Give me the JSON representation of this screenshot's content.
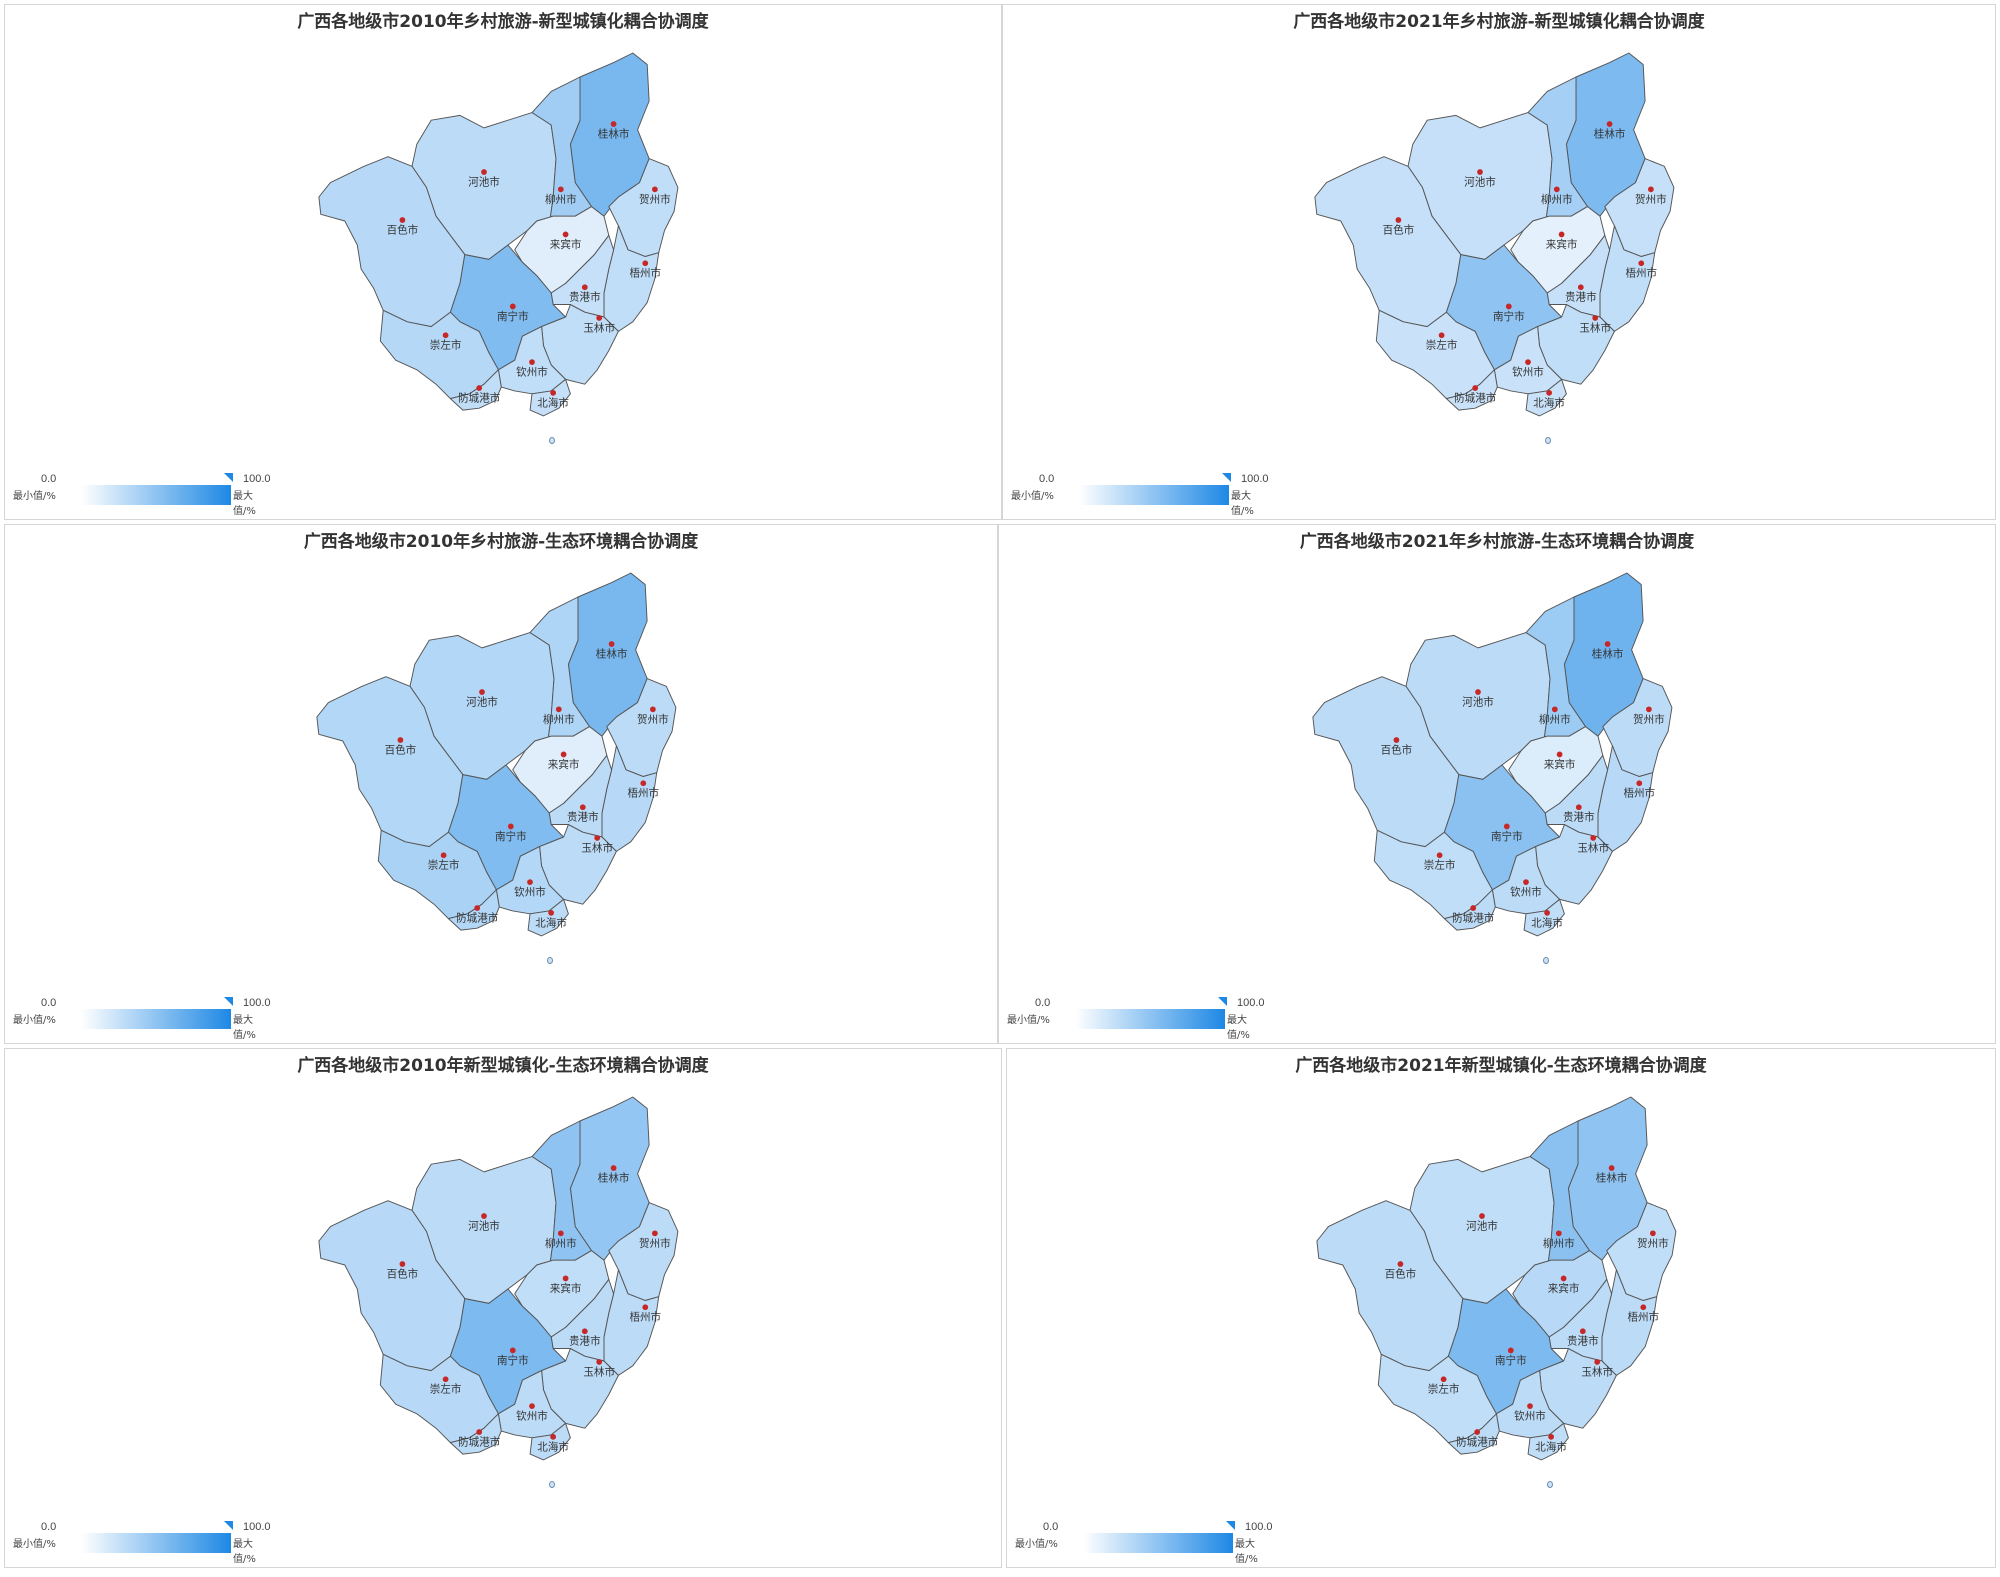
{
  "legend": {
    "min_value": "0.0",
    "max_value": "100.0",
    "min_label": "最小值/%",
    "max_label": "最大值/%",
    "color_low": "#ffffff",
    "color_high": "#1e88e5"
  },
  "cities": [
    "桂林市",
    "河池市",
    "柳州市",
    "贺州市",
    "百色市",
    "来宾市",
    "梧州市",
    "贵港市",
    "南宁市",
    "玉林市",
    "崇左市",
    "钦州市",
    "防城港市",
    "北海市"
  ],
  "panels": [
    {
      "title": "广西各地级市2010年乡村旅游-新型城镇化耦合协调度",
      "values": {
        "桂林市": 60,
        "河池市": 30,
        "柳州市": 42,
        "贺州市": 28,
        "百色市": 32,
        "来宾市": 14,
        "梧州市": 28,
        "贵港市": 26,
        "南宁市": 56,
        "玉林市": 28,
        "崇左市": 33,
        "钦州市": 28,
        "防城港市": 28,
        "北海市": 26
      }
    },
    {
      "title": "广西各地级市2021年乡村旅游-新型城镇化耦合协调度",
      "values": {
        "桂林市": 58,
        "河池市": 26,
        "柳州市": 40,
        "贺州市": 26,
        "百色市": 26,
        "来宾市": 12,
        "梧州市": 28,
        "贵港市": 26,
        "南宁市": 50,
        "玉林市": 28,
        "崇左市": 24,
        "钦州市": 24,
        "防城港市": 24,
        "北海市": 24
      }
    },
    {
      "title": "广西各地级市2010年乡村旅游-生态环境耦合协调度",
      "values": {
        "桂林市": 60,
        "河池市": 34,
        "柳州市": 36,
        "贺州市": 30,
        "百色市": 34,
        "来宾市": 14,
        "梧州市": 32,
        "贵港市": 30,
        "南宁市": 56,
        "玉林市": 30,
        "崇左市": 38,
        "钦州市": 34,
        "防城港市": 34,
        "北海市": 30
      }
    },
    {
      "title": "广西各地级市2021年乡村旅游-生态环境耦合协调度",
      "values": {
        "桂林市": 64,
        "河池市": 30,
        "柳州市": 44,
        "贺州市": 30,
        "百色市": 30,
        "来宾市": 16,
        "梧州市": 32,
        "贵港市": 30,
        "南宁市": 52,
        "玉林市": 30,
        "崇左市": 28,
        "钦州市": 30,
        "防城港市": 30,
        "北海市": 28
      }
    },
    {
      "title": "广西各地级市2010年新型城镇化-生态环境耦合协调度",
      "values": {
        "桂林市": 48,
        "河池市": 30,
        "柳州市": 50,
        "贺州市": 30,
        "百色市": 32,
        "来宾市": 28,
        "梧州市": 30,
        "贵港市": 30,
        "南宁市": 58,
        "玉林市": 30,
        "崇左市": 32,
        "钦州市": 30,
        "防城港市": 30,
        "北海市": 30
      }
    },
    {
      "title": "广西各地级市2021年新型城镇化-生态环境耦合协调度",
      "values": {
        "桂林市": 50,
        "河池市": 28,
        "柳州市": 52,
        "贺州市": 28,
        "百色市": 30,
        "来宾市": 32,
        "梧州市": 30,
        "贵港市": 30,
        "南宁市": 58,
        "玉林市": 30,
        "崇左市": 28,
        "钦州市": 30,
        "防城港市": 30,
        "北海市": 28
      }
    }
  ]
}
